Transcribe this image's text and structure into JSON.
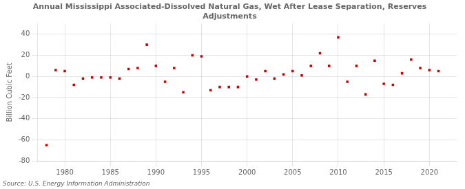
{
  "chart_data": {
    "type": "scatter",
    "title": "Annual Mississippi Associated-Dissolved Natural Gas, Wet After Lease Separation, Reserves\nAdjustments",
    "ylabel": "Billion Cubic Feet",
    "source": "Source: U.S. Energy Information Administration",
    "x": [
      1978,
      1979,
      1980,
      1981,
      1982,
      1983,
      1984,
      1985,
      1986,
      1987,
      1988,
      1989,
      1990,
      1991,
      1992,
      1993,
      1994,
      1995,
      1996,
      1997,
      1998,
      1999,
      2000,
      2001,
      2002,
      2003,
      2004,
      2005,
      2006,
      2007,
      2008,
      2009,
      2010,
      2011,
      2012,
      2013,
      2014,
      2015,
      2016,
      2017,
      2018,
      2019,
      2020,
      2021
    ],
    "values": [
      -65,
      6,
      5,
      -8,
      -2,
      -1,
      -1,
      -1,
      -2,
      7,
      8,
      30,
      10,
      -5,
      8,
      -15,
      20,
      19,
      -13,
      -10,
      -10,
      -10,
      0,
      -3,
      5,
      -2,
      2,
      5,
      1,
      10,
      22,
      10,
      37,
      -5,
      10,
      -17,
      15,
      -7,
      -8,
      3,
      16,
      8,
      6,
      5
    ],
    "color": "#cc0000",
    "marker": "square",
    "xlim": [
      1977,
      2023
    ],
    "ylim": [
      -80,
      50
    ],
    "xticks": [
      1980,
      1985,
      1990,
      1995,
      2000,
      2005,
      2010,
      2015,
      2020
    ],
    "yticks": [
      -80,
      -60,
      -40,
      -20,
      0,
      20,
      40
    ],
    "grid": true
  }
}
